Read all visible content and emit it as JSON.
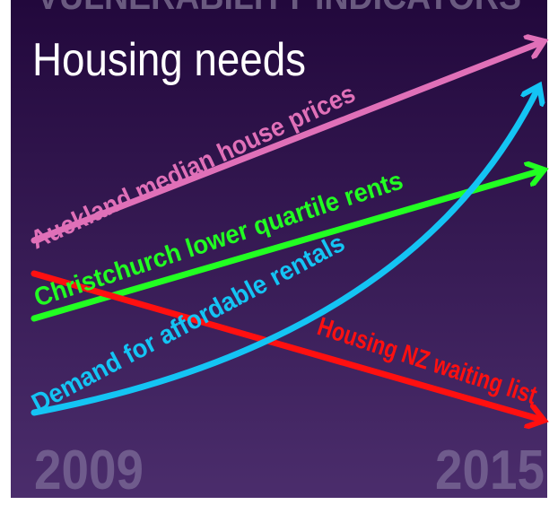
{
  "header_text": "VULNERABILITY INDICATORS",
  "title": "Housing needs",
  "arrows": [
    {
      "label": "Auckland median house prices"
    },
    {
      "label": "Christchurch lower quartile rents"
    },
    {
      "label": "Demand for affordable rentals"
    },
    {
      "label": "Housing NZ waiting list"
    }
  ],
  "start_year": "2009",
  "end_year": "2015"
}
